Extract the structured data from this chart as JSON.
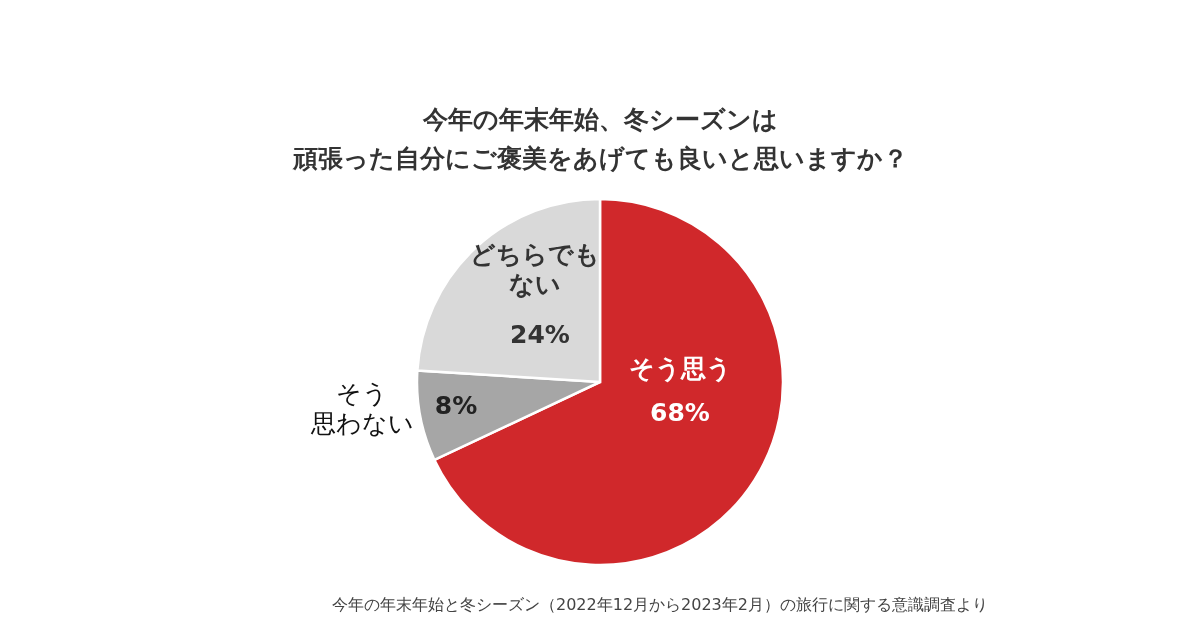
{
  "chart_data": {
    "type": "pie",
    "title": "今年の年末年始、冬シーズンは",
    "subtitle": "頑張った自分にご褒美をあげても良いと思いますか？",
    "categories": [
      "そう思う",
      "そう思わない",
      "どちらでもない"
    ],
    "values": [
      68,
      8,
      24
    ],
    "colors": [
      "#d0282b",
      "#a6a6a6",
      "#d9d9d9"
    ],
    "value_labels": [
      "68%",
      "8%",
      "24%"
    ],
    "annotations": [
      "今年の年末年始と冬シーズン（2022年12月から2023年2月）の旅行に関する意識調査より"
    ]
  }
}
